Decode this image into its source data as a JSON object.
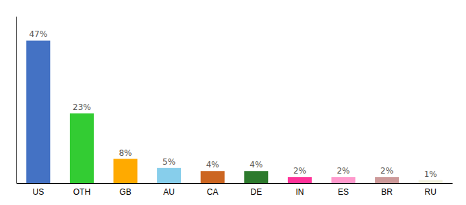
{
  "chart_data": {
    "type": "bar",
    "categories": [
      "US",
      "OTH",
      "GB",
      "AU",
      "CA",
      "DE",
      "IN",
      "ES",
      "BR",
      "RU"
    ],
    "values": [
      47,
      23,
      8,
      5,
      4,
      4,
      2,
      2,
      2,
      1
    ],
    "value_labels": [
      "47%",
      "23%",
      "8%",
      "5%",
      "4%",
      "4%",
      "2%",
      "2%",
      "2%",
      "1%"
    ],
    "data_labels": true,
    "colors": [
      "#4472c4",
      "#33cc33",
      "#ffaa00",
      "#87ceeb",
      "#cc6622",
      "#2d7a2d",
      "#ff3399",
      "#ff99cc",
      "#cc9999",
      "#f0f0dc"
    ],
    "ylim": [
      0,
      55
    ],
    "tick_labels": "x",
    "grid": false
  }
}
